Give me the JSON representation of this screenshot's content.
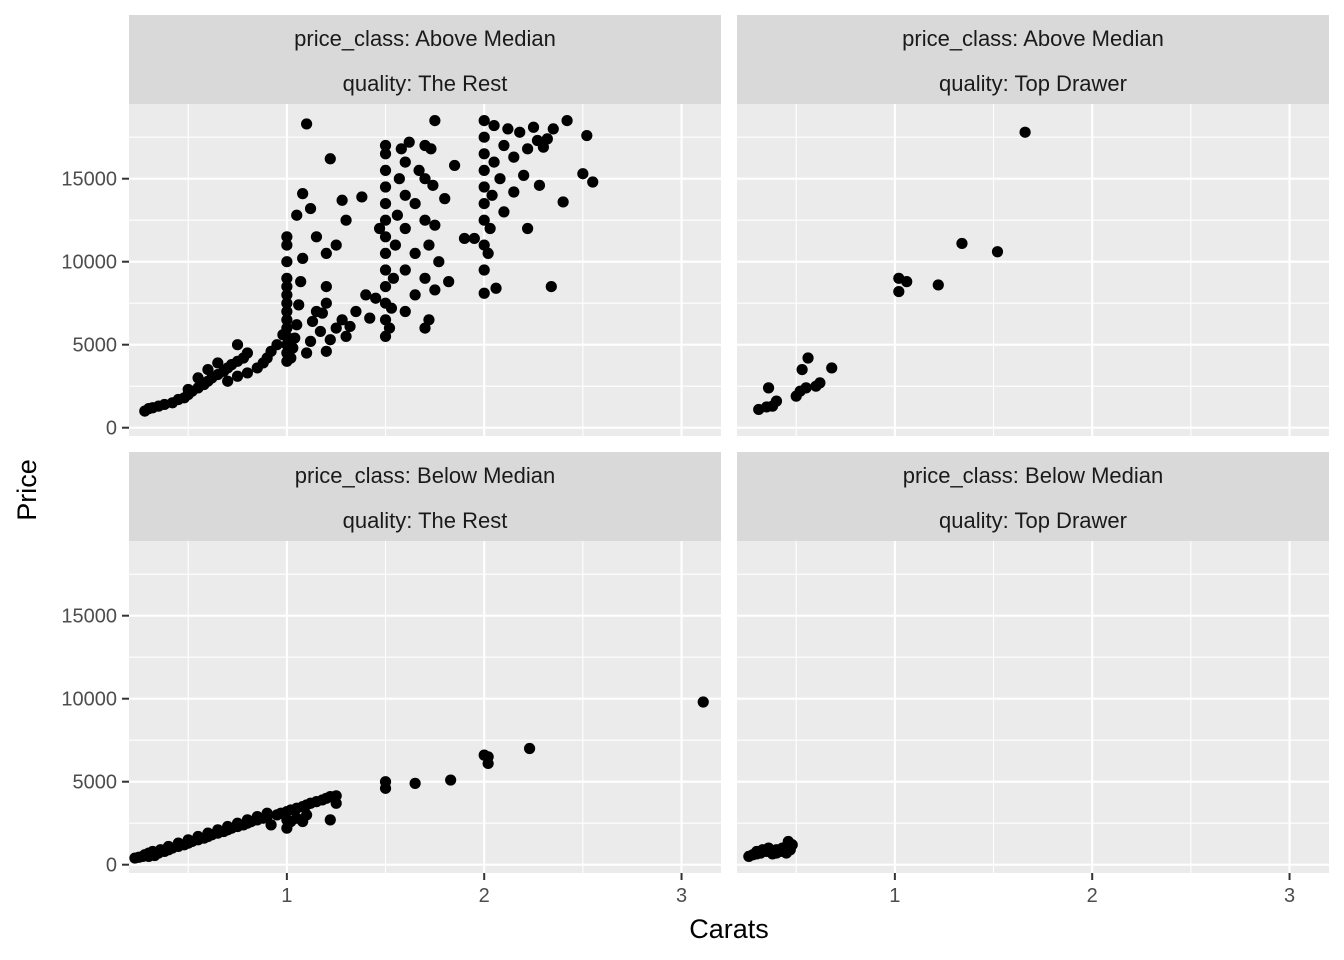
{
  "chart_data": {
    "type": "scatter",
    "xlabel": "Carats",
    "ylabel": "Price",
    "xlim": [
      0.2,
      3.2
    ],
    "ylim": [
      -500,
      19500
    ],
    "x_ticks": [
      1,
      2,
      3
    ],
    "y_ticks": [
      0,
      5000,
      10000,
      15000
    ],
    "grid": true,
    "panels": [
      {
        "row": 0,
        "col": 0,
        "strip": [
          "price_class: Above Median",
          "quality: The Rest"
        ],
        "points": [
          [
            0.28,
            1000
          ],
          [
            0.3,
            1150
          ],
          [
            0.32,
            1200
          ],
          [
            0.35,
            1300
          ],
          [
            0.38,
            1400
          ],
          [
            0.42,
            1500
          ],
          [
            0.45,
            1700
          ],
          [
            0.48,
            1800
          ],
          [
            0.5,
            2000
          ],
          [
            0.5,
            2300
          ],
          [
            0.52,
            2200
          ],
          [
            0.55,
            2400
          ],
          [
            0.58,
            2600
          ],
          [
            0.6,
            2800
          ],
          [
            0.62,
            3000
          ],
          [
            0.65,
            3200
          ],
          [
            0.68,
            3400
          ],
          [
            0.7,
            3600
          ],
          [
            0.72,
            3800
          ],
          [
            0.75,
            4000
          ],
          [
            0.78,
            4200
          ],
          [
            0.8,
            4500
          ],
          [
            0.55,
            3000
          ],
          [
            0.6,
            3500
          ],
          [
            0.65,
            3900
          ],
          [
            0.7,
            2800
          ],
          [
            0.75,
            3100
          ],
          [
            0.8,
            3300
          ],
          [
            0.85,
            3600
          ],
          [
            0.88,
            3900
          ],
          [
            0.9,
            4200
          ],
          [
            0.92,
            4600
          ],
          [
            0.95,
            5000
          ],
          [
            0.98,
            5600
          ],
          [
            0.75,
            5000
          ],
          [
            1.0,
            4000
          ],
          [
            1.0,
            4500
          ],
          [
            1.0,
            5000
          ],
          [
            1.0,
            5500
          ],
          [
            1.0,
            6000
          ],
          [
            1.0,
            6500
          ],
          [
            1.0,
            7000
          ],
          [
            1.0,
            7500
          ],
          [
            1.0,
            8000
          ],
          [
            1.0,
            8500
          ],
          [
            1.0,
            9000
          ],
          [
            1.0,
            10000
          ],
          [
            1.0,
            11000
          ],
          [
            1.0,
            11500
          ],
          [
            1.02,
            4200
          ],
          [
            1.03,
            4800
          ],
          [
            1.04,
            5400
          ],
          [
            1.05,
            6200
          ],
          [
            1.06,
            7400
          ],
          [
            1.07,
            8800
          ],
          [
            1.08,
            10200
          ],
          [
            1.1,
            4500
          ],
          [
            1.12,
            5200
          ],
          [
            1.13,
            6400
          ],
          [
            1.15,
            7000
          ],
          [
            1.15,
            11500
          ],
          [
            1.17,
            5800
          ],
          [
            1.18,
            6900
          ],
          [
            1.2,
            4600
          ],
          [
            1.2,
            7500
          ],
          [
            1.2,
            8500
          ],
          [
            1.2,
            10500
          ],
          [
            1.22,
            5300
          ],
          [
            1.22,
            16200
          ],
          [
            1.25,
            6000
          ],
          [
            1.25,
            11000
          ],
          [
            1.28,
            6500
          ],
          [
            1.28,
            13700
          ],
          [
            1.3,
            5500
          ],
          [
            1.3,
            12500
          ],
          [
            1.32,
            6100
          ],
          [
            1.35,
            7000
          ],
          [
            1.38,
            13900
          ],
          [
            1.4,
            8000
          ],
          [
            1.42,
            6600
          ],
          [
            1.45,
            7800
          ],
          [
            1.47,
            12000
          ],
          [
            1.08,
            14100
          ],
          [
            1.1,
            18300
          ],
          [
            1.05,
            12800
          ],
          [
            1.12,
            13200
          ],
          [
            1.5,
            5500
          ],
          [
            1.5,
            6500
          ],
          [
            1.5,
            7500
          ],
          [
            1.5,
            8500
          ],
          [
            1.5,
            9500
          ],
          [
            1.5,
            10500
          ],
          [
            1.5,
            11500
          ],
          [
            1.5,
            12500
          ],
          [
            1.5,
            13500
          ],
          [
            1.5,
            14500
          ],
          [
            1.5,
            15500
          ],
          [
            1.5,
            16500
          ],
          [
            1.5,
            17000
          ],
          [
            1.52,
            6000
          ],
          [
            1.53,
            7200
          ],
          [
            1.54,
            9000
          ],
          [
            1.55,
            11000
          ],
          [
            1.56,
            12800
          ],
          [
            1.57,
            15000
          ],
          [
            1.58,
            16800
          ],
          [
            1.6,
            7000
          ],
          [
            1.6,
            9500
          ],
          [
            1.6,
            12000
          ],
          [
            1.6,
            14000
          ],
          [
            1.6,
            16000
          ],
          [
            1.62,
            17200
          ],
          [
            1.65,
            8000
          ],
          [
            1.65,
            10500
          ],
          [
            1.65,
            13500
          ],
          [
            1.67,
            15500
          ],
          [
            1.7,
            6000
          ],
          [
            1.7,
            9000
          ],
          [
            1.7,
            12500
          ],
          [
            1.7,
            15000
          ],
          [
            1.7,
            17000
          ],
          [
            1.72,
            6500
          ],
          [
            1.72,
            11000
          ],
          [
            1.74,
            14600
          ],
          [
            1.75,
            8300
          ],
          [
            1.75,
            12200
          ],
          [
            1.75,
            18500
          ],
          [
            1.77,
            10000
          ],
          [
            1.8,
            13800
          ],
          [
            1.82,
            8800
          ],
          [
            1.85,
            15800
          ],
          [
            1.9,
            11400
          ],
          [
            1.95,
            11400
          ],
          [
            1.73,
            16800
          ],
          [
            2.0,
            8100
          ],
          [
            2.0,
            9500
          ],
          [
            2.0,
            11000
          ],
          [
            2.0,
            12500
          ],
          [
            2.0,
            13500
          ],
          [
            2.0,
            14500
          ],
          [
            2.0,
            15500
          ],
          [
            2.0,
            16500
          ],
          [
            2.0,
            17500
          ],
          [
            2.0,
            18500
          ],
          [
            2.02,
            10500
          ],
          [
            2.03,
            12000
          ],
          [
            2.04,
            14000
          ],
          [
            2.05,
            16000
          ],
          [
            2.05,
            18200
          ],
          [
            2.06,
            8400
          ],
          [
            2.08,
            15000
          ],
          [
            2.1,
            13000
          ],
          [
            2.1,
            17000
          ],
          [
            2.12,
            18000
          ],
          [
            2.15,
            14200
          ],
          [
            2.15,
            16300
          ],
          [
            2.18,
            17800
          ],
          [
            2.2,
            15200
          ],
          [
            2.22,
            12000
          ],
          [
            2.22,
            16800
          ],
          [
            2.25,
            18100
          ],
          [
            2.28,
            14600
          ],
          [
            2.3,
            16900
          ],
          [
            2.32,
            17400
          ],
          [
            2.34,
            8500
          ],
          [
            2.35,
            18000
          ],
          [
            2.4,
            13600
          ],
          [
            2.42,
            18500
          ],
          [
            2.5,
            15300
          ],
          [
            2.52,
            17600
          ],
          [
            2.55,
            14800
          ],
          [
            2.27,
            17300
          ]
        ]
      },
      {
        "row": 0,
        "col": 1,
        "strip": [
          "price_class: Above Median",
          "quality: Top Drawer"
        ],
        "points": [
          [
            0.31,
            1100
          ],
          [
            0.35,
            1250
          ],
          [
            0.36,
            2400
          ],
          [
            0.38,
            1300
          ],
          [
            0.4,
            1600
          ],
          [
            0.5,
            1900
          ],
          [
            0.52,
            2200
          ],
          [
            0.53,
            3500
          ],
          [
            0.55,
            2400
          ],
          [
            0.56,
            4200
          ],
          [
            0.6,
            2500
          ],
          [
            0.62,
            2700
          ],
          [
            0.68,
            3600
          ],
          [
            1.02,
            8200
          ],
          [
            1.02,
            9000
          ],
          [
            1.06,
            8800
          ],
          [
            1.22,
            8600
          ],
          [
            1.34,
            11100
          ],
          [
            1.52,
            10600
          ],
          [
            1.66,
            17800
          ]
        ]
      },
      {
        "row": 1,
        "col": 0,
        "strip": [
          "price_class: Below Median",
          "quality: The Rest"
        ],
        "points": [
          [
            0.23,
            400
          ],
          [
            0.25,
            450
          ],
          [
            0.27,
            500
          ],
          [
            0.28,
            600
          ],
          [
            0.3,
            500
          ],
          [
            0.3,
            700
          ],
          [
            0.31,
            650
          ],
          [
            0.32,
            800
          ],
          [
            0.33,
            550
          ],
          [
            0.35,
            700
          ],
          [
            0.36,
            900
          ],
          [
            0.38,
            800
          ],
          [
            0.4,
            900
          ],
          [
            0.4,
            1100
          ],
          [
            0.42,
            1000
          ],
          [
            0.45,
            1100
          ],
          [
            0.45,
            1300
          ],
          [
            0.48,
            1200
          ],
          [
            0.5,
            1300
          ],
          [
            0.5,
            1500
          ],
          [
            0.52,
            1400
          ],
          [
            0.55,
            1500
          ],
          [
            0.55,
            1700
          ],
          [
            0.58,
            1600
          ],
          [
            0.6,
            1700
          ],
          [
            0.6,
            1900
          ],
          [
            0.62,
            1800
          ],
          [
            0.65,
            1900
          ],
          [
            0.65,
            2100
          ],
          [
            0.68,
            2000
          ],
          [
            0.7,
            2100
          ],
          [
            0.7,
            2300
          ],
          [
            0.72,
            2200
          ],
          [
            0.75,
            2300
          ],
          [
            0.75,
            2500
          ],
          [
            0.78,
            2400
          ],
          [
            0.8,
            2500
          ],
          [
            0.8,
            2700
          ],
          [
            0.82,
            2600
          ],
          [
            0.85,
            2700
          ],
          [
            0.85,
            2900
          ],
          [
            0.88,
            2800
          ],
          [
            0.9,
            2900
          ],
          [
            0.9,
            3100
          ],
          [
            0.92,
            2400
          ],
          [
            0.95,
            3000
          ],
          [
            0.97,
            3100
          ],
          [
            1.0,
            2200
          ],
          [
            1.0,
            2700
          ],
          [
            1.0,
            3200
          ],
          [
            1.02,
            2600
          ],
          [
            1.02,
            3300
          ],
          [
            1.05,
            2800
          ],
          [
            1.05,
            3400
          ],
          [
            1.08,
            2600
          ],
          [
            1.08,
            3500
          ],
          [
            1.1,
            3000
          ],
          [
            1.1,
            3600
          ],
          [
            1.12,
            3700
          ],
          [
            1.15,
            3800
          ],
          [
            1.18,
            3900
          ],
          [
            1.2,
            4000
          ],
          [
            1.22,
            4100
          ],
          [
            1.22,
            2700
          ],
          [
            1.25,
            3700
          ],
          [
            1.25,
            4150
          ],
          [
            1.5,
            4600
          ],
          [
            1.5,
            5000
          ],
          [
            1.65,
            4900
          ],
          [
            1.83,
            5100
          ],
          [
            2.0,
            6600
          ],
          [
            2.02,
            6100
          ],
          [
            2.02,
            6500
          ],
          [
            2.23,
            7000
          ],
          [
            3.11,
            9800
          ]
        ]
      },
      {
        "row": 1,
        "col": 1,
        "strip": [
          "price_class: Below Median",
          "quality: Top Drawer"
        ],
        "points": [
          [
            0.26,
            500
          ],
          [
            0.28,
            600
          ],
          [
            0.3,
            650
          ],
          [
            0.3,
            800
          ],
          [
            0.32,
            700
          ],
          [
            0.33,
            900
          ],
          [
            0.35,
            800
          ],
          [
            0.36,
            1000
          ],
          [
            0.38,
            650
          ],
          [
            0.4,
            700
          ],
          [
            0.4,
            900
          ],
          [
            0.43,
            1000
          ],
          [
            0.45,
            700
          ],
          [
            0.45,
            1100
          ],
          [
            0.46,
            1400
          ],
          [
            0.48,
            1200
          ],
          [
            0.47,
            900
          ],
          [
            0.42,
            800
          ]
        ]
      }
    ]
  }
}
